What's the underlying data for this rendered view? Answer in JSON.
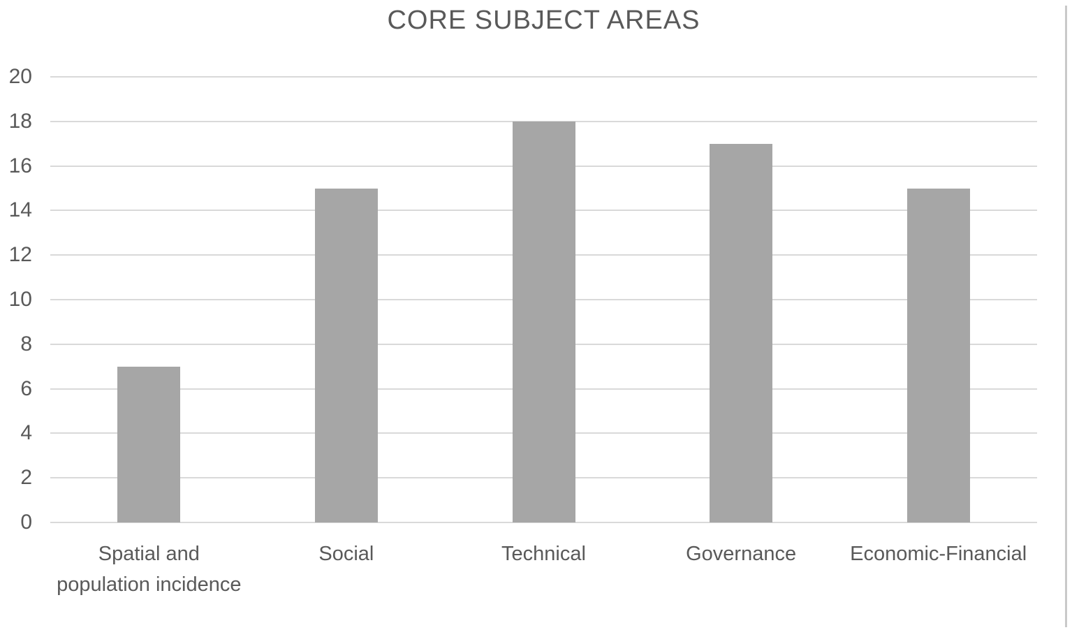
{
  "title": "CORE SUBJECT AREAS",
  "chart_data": {
    "type": "bar",
    "title": "CORE SUBJECT AREAS",
    "categories": [
      "Spatial and population incidence",
      "Social",
      "Technical",
      "Governance",
      "Economic-Financial"
    ],
    "values": [
      7,
      15,
      18,
      17,
      15
    ],
    "xlabel": "",
    "ylabel": "",
    "ylim": [
      0,
      20
    ],
    "yticks": [
      0,
      2,
      4,
      6,
      8,
      10,
      12,
      14,
      16,
      18,
      20
    ],
    "grid": true,
    "legend_position": "none",
    "bar_color": "#a6a6a6",
    "gridline_color": "#d9d9d9",
    "text_color": "#595959",
    "background_color": "#ffffff"
  }
}
